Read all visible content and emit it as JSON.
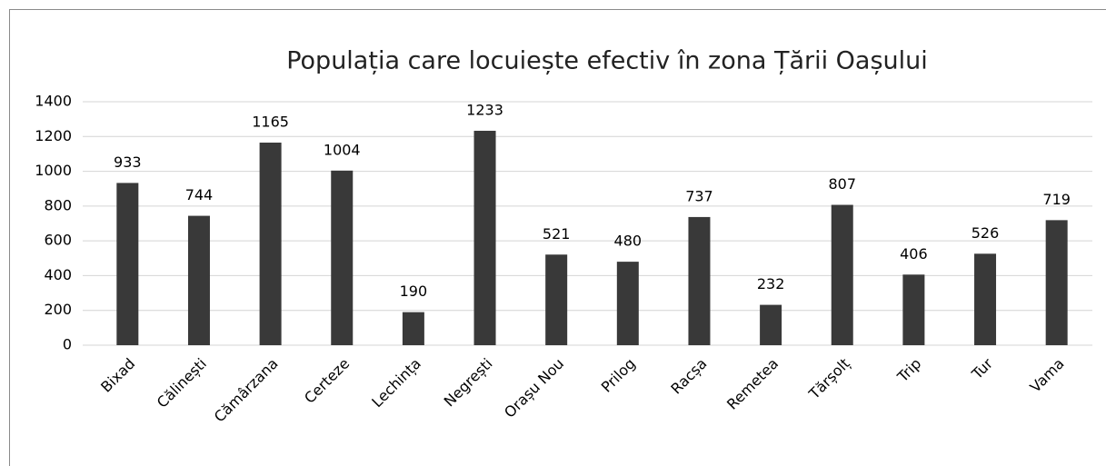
{
  "chart_data": {
    "type": "bar",
    "title": "Populația care locuiește efectiv în zona Țării Oașului",
    "categories": [
      "Bixad",
      "Călinești",
      "Cămârzana",
      "Certeze",
      "Lechința",
      "Negrești",
      "Orașu Nou",
      "Prilog",
      "Racșa",
      "Remetea",
      "Tărșolț",
      "Trip",
      "Tur",
      "Vama"
    ],
    "values": [
      933,
      744,
      1165,
      1004,
      190,
      1233,
      521,
      480,
      737,
      232,
      807,
      406,
      526,
      719
    ],
    "color": "#393939",
    "ylim": [
      0,
      1400
    ],
    "yticks": [
      0,
      200,
      400,
      600,
      800,
      1000,
      1200,
      1400
    ],
    "grid": true
  }
}
